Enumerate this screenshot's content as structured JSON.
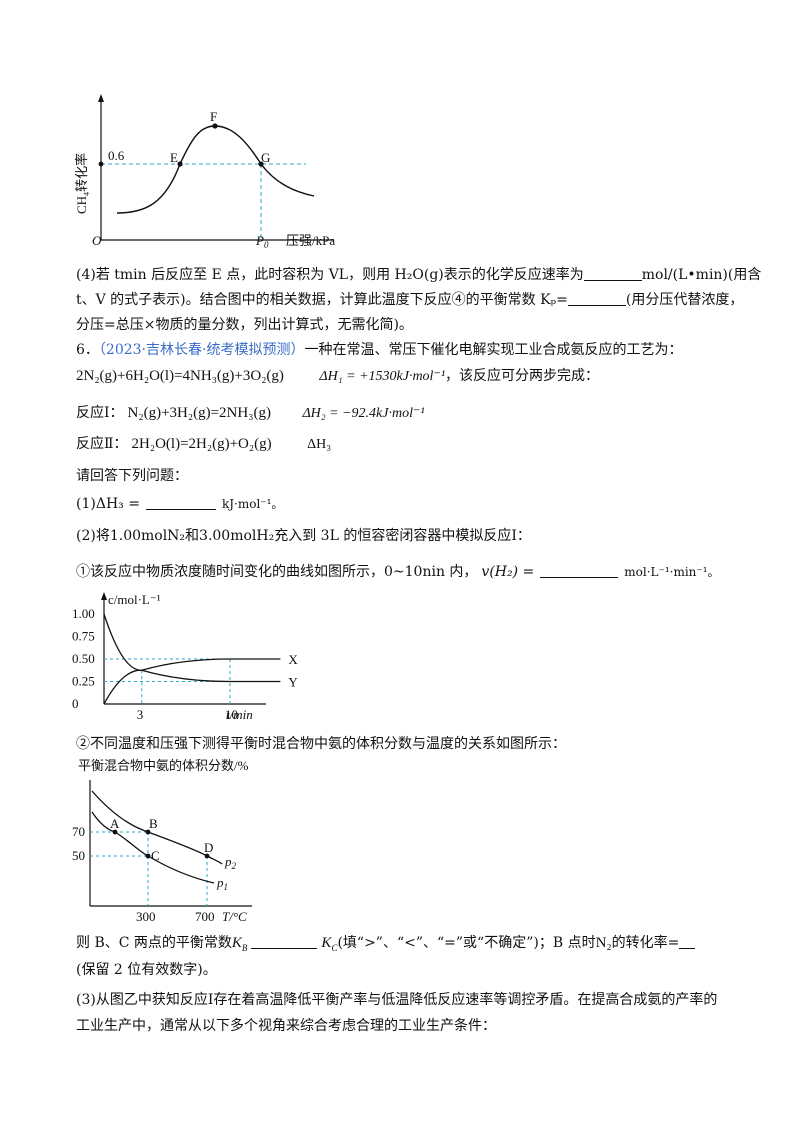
{
  "figure_top": {
    "ylabel": "CH4转化率",
    "xlabel": "压强/kPa",
    "origin": "O",
    "y_tick": "0.6",
    "x_tick": "P0",
    "points": [
      "E",
      "F",
      "G"
    ]
  },
  "chart_data": [
    {
      "type": "line",
      "xlabel": "压强/kPa",
      "ylabel": "CH4转化率",
      "labeled_points": [
        {
          "name": "E",
          "y": 0.6
        },
        {
          "name": "F"
        },
        {
          "name": "G",
          "x": "P0",
          "y": 0.6
        }
      ]
    },
    {
      "type": "line",
      "ylabel": "c/mol·L⁻¹",
      "xlabel": "t/min",
      "y_ticks": [
        "1.00",
        "0.75",
        "0.50",
        "0.25",
        "0"
      ],
      "x_ticks": [
        "3",
        "10"
      ],
      "series": [
        {
          "name": "X",
          "x": [
            0,
            3,
            10,
            14
          ],
          "y": [
            0,
            0.375,
            0.5,
            0.5
          ]
        },
        {
          "name": "Y",
          "x": [
            0,
            3,
            10,
            14
          ],
          "y": [
            1.0,
            0.375,
            0.25,
            0.25
          ]
        }
      ],
      "ylim": [
        0,
        1.1
      ]
    },
    {
      "type": "line",
      "title": "平衡混合物中氨的体积分数/%",
      "xlabel": "T/°C",
      "y_ticks": [
        "70",
        "50"
      ],
      "x_ticks": [
        "300",
        "700"
      ],
      "series": [
        {
          "name": "p2"
        },
        {
          "name": "p1"
        }
      ],
      "labeled_points": [
        {
          "name": "A",
          "y": 70
        },
        {
          "name": "B",
          "x": 300,
          "y": 70
        },
        {
          "name": "C",
          "x": 300,
          "y": 50
        },
        {
          "name": "D",
          "x": 700
        }
      ]
    }
  ],
  "text": {
    "q4_line1": "(4)若 tmin 后反应至 E 点，此时容积为 VL，则用 H₂O(g)表示的化学反应速率为",
    "q4_unit1": "mol/(L•min)(用含",
    "q4_line2a": "t、V 的式子表示)。结合图中的相关数据，计算此温度下反应④的平衡常数 Kₚ=",
    "q4_line2b": "(用分压代替浓度，",
    "q4_line3": "分压=总压×物质的量分数，列出计算式，无需化简)。",
    "q6_num": "6．",
    "q6_src": "（2023·吉林长春·统考模拟预测）",
    "q6_intro": "一种在常温、常压下催化电解实现工业合成氨反应的工艺为：",
    "eq_total": "2N₂(g)+6H₂O(l)=4NH₃(g)+3O₂(g)",
    "dh_total": "ΔH₁ = +1530kJ·mol⁻¹",
    "eq_total_tail": "，该反应可分两步完成：",
    "r1_label": "反应Ⅰ：",
    "r1_eq": "N₂(g)+3H₂(g)=2NH₃(g)",
    "r1_dh": "ΔH₂ = −92.4kJ·mol⁻¹",
    "r2_label": "反应Ⅱ：",
    "r2_eq": "2H₂O(l)=2H₂(g)+O₂(g)",
    "r2_dh": "ΔH₃",
    "ask": "请回答下列问题：",
    "q1": "(1)ΔH₃ =",
    "q1_unit": "kJ·mol⁻¹。",
    "q2": "(2)将1.00molN₂和3.00molH₂充入到 3L 的恒容密闭容器中模拟反应Ⅰ：",
    "q2_1": "①该反应中物质浓度随时间变化的曲线如图所示，0~10nin 内，",
    "q2_1_v": "v(H₂) =",
    "q2_1_unit": "mol·L⁻¹·min⁻¹。",
    "q2_2": "②不同温度和压强下测得平衡时混合物中氨的体积分数与温度的关系如图所示：",
    "q2_3a": "则 B、C 两点的平衡常数",
    "q2_3_kb": "K",
    "q2_3_kb_sub": "B",
    "q2_3_kc": "K",
    "q2_3_kc_sub": "C",
    "q2_3b": "(填“>”、“<”、“=”或“不确定”)；B 点时",
    "q2_3_n2": "N₂",
    "q2_3c": "的转化率=",
    "q2_3d": "(保留 2 位有效数字)。",
    "q3_line1": "(3)从图乙中获知反应Ⅰ存在着高温降低平衡产率与低温降低反应速率等调控矛盾。在提高合成氨的产率的",
    "q3_line2": "工业生产中，通常从以下多个视角来综合考虑合理的工业生产条件："
  }
}
